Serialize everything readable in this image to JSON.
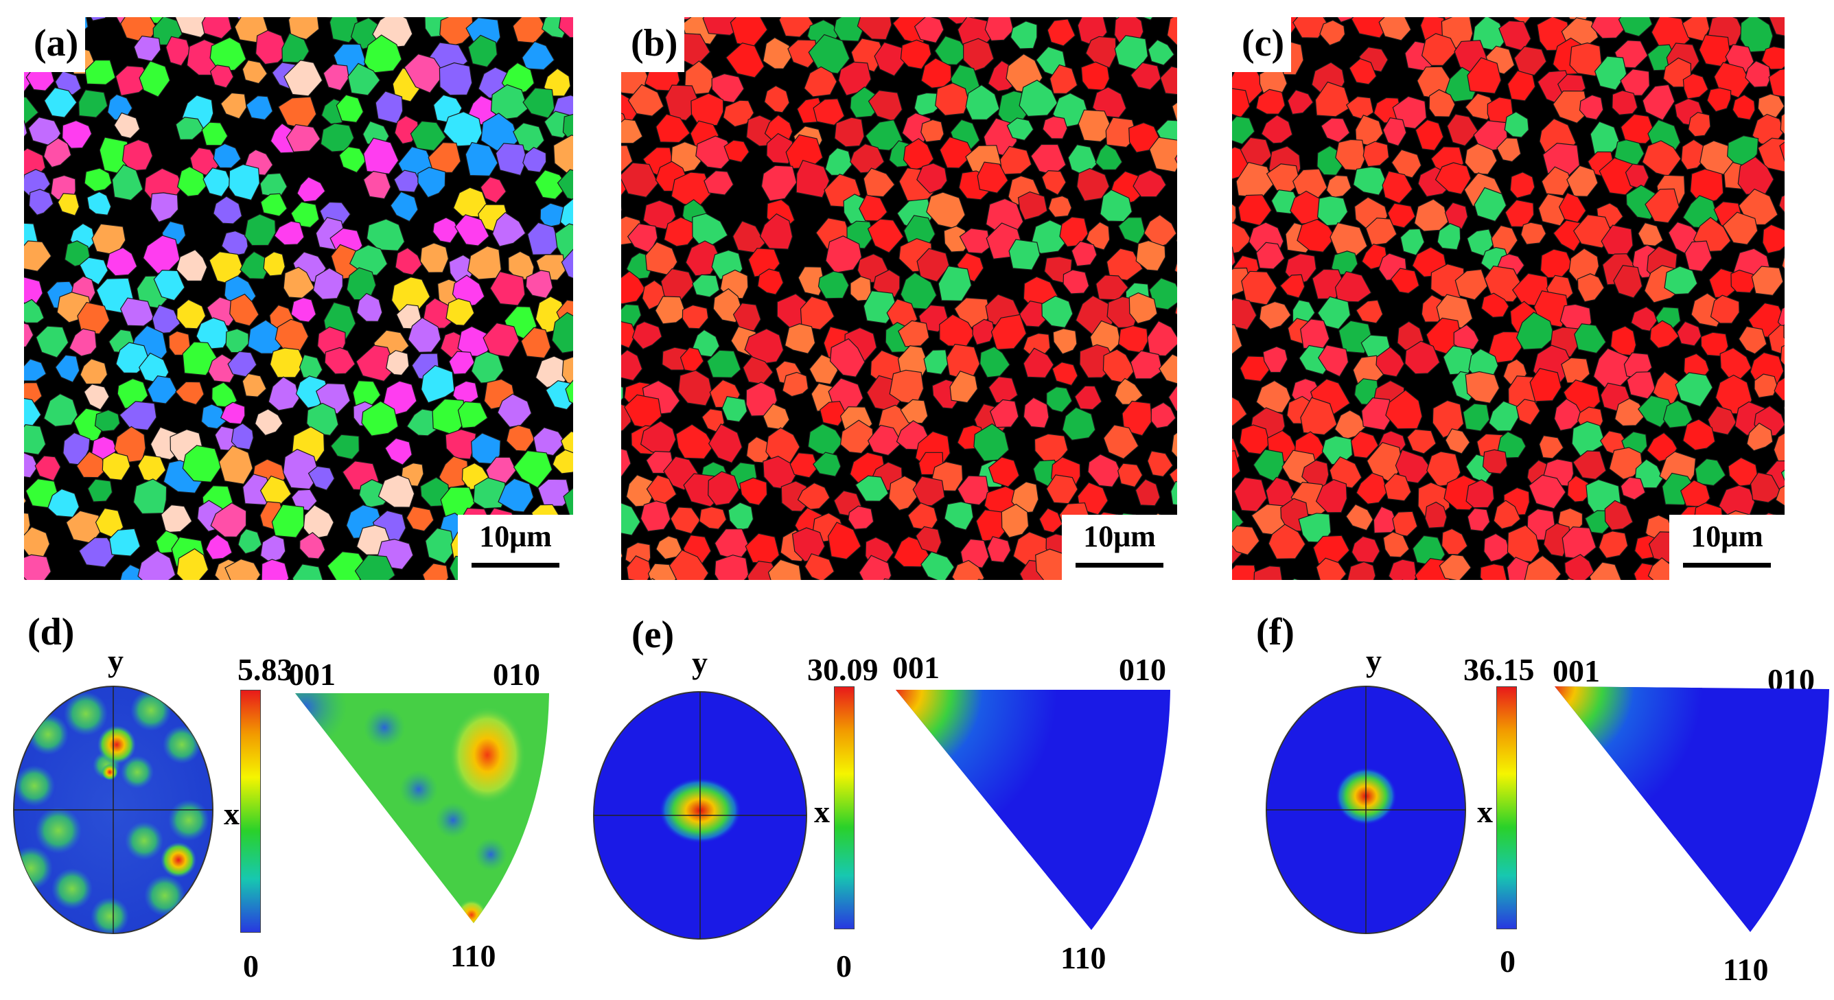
{
  "panels": {
    "a": {
      "label": "(a)",
      "scale": "10μm",
      "palette": [
        "#ff3df0",
        "#35e6ff",
        "#35ff35",
        "#ff2a6e",
        "#8a63ff",
        "#ffa64d",
        "#ffd6c2",
        "#1c9cff",
        "#ffe11a",
        "#ff4fa8",
        "#c26bff",
        "#ff6a2a"
      ]
    },
    "b": {
      "label": "(b)",
      "scale": "10μm",
      "palette": [
        "#ff1f1f",
        "#ff3a2a",
        "#f01c30",
        "#ff5733",
        "#e8202a",
        "#ff2e4a",
        "#ff7a3d",
        "#ff1a1a"
      ]
    },
    "c": {
      "label": "(c)",
      "scale": "10μm",
      "palette": [
        "#ff1f1f",
        "#ff3a2a",
        "#f01c30",
        "#ff5733",
        "#e8202a",
        "#ff2e4a",
        "#ff6a3d",
        "#ff1a1a"
      ]
    },
    "d": {
      "label": "(d)",
      "max": "5.83",
      "min": "0",
      "axis_y": "y",
      "axis_x": "x",
      "pole_001": "001",
      "pole_010": "010",
      "pole_110": "110"
    },
    "e": {
      "label": "(e)",
      "max": "30.09",
      "min": "0",
      "axis_y": "y",
      "axis_x": "x",
      "pole_001": "001",
      "pole_010": "010",
      "pole_110": "110"
    },
    "f": {
      "label": "(f)",
      "max": "36.15",
      "min": "0",
      "axis_y": "y",
      "axis_x": "x",
      "pole_001": "001",
      "pole_010": "010",
      "pole_110": "110"
    }
  },
  "colors": {
    "map_black": "#000000",
    "field_blue": "#1a1ae6",
    "grain_green": "#16b846",
    "hot_red": "#e01010"
  }
}
